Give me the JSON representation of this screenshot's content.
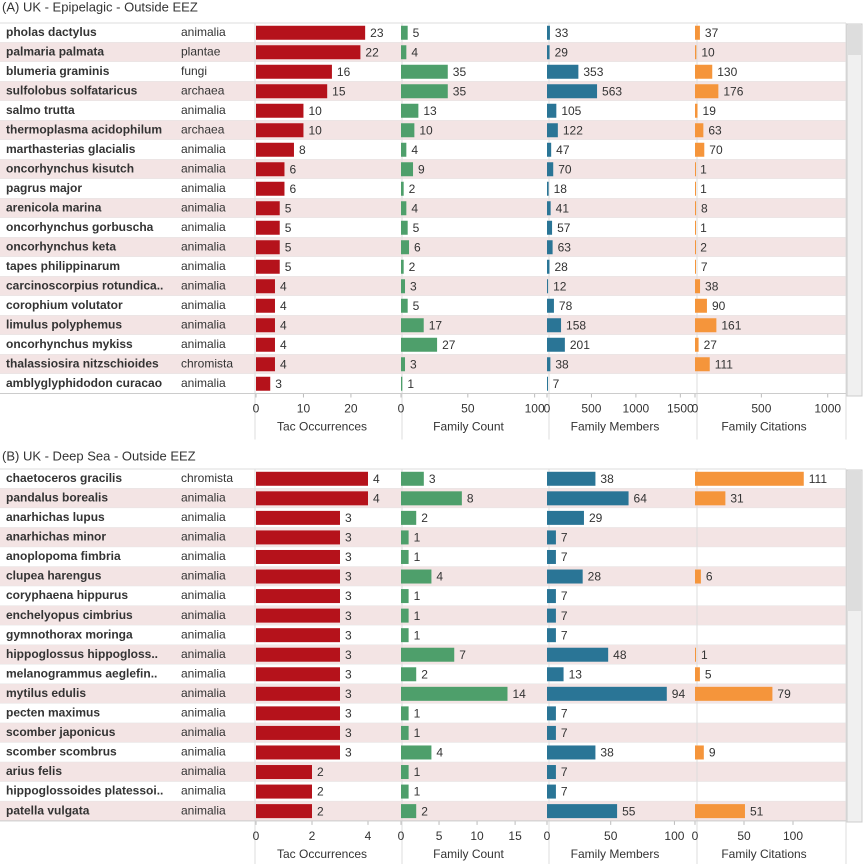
{
  "chart_data": [
    {
      "type": "hbar-table",
      "title": "(A) UK - Epipelagic - Outside EEZ",
      "categories": [
        "pholas dactylus",
        "palmaria palmata",
        "blumeria graminis",
        "sulfolobus solfataricus",
        "salmo trutta",
        "thermoplasma acidophilum",
        "marthasterias glacialis",
        "oncorhynchus kisutch",
        "pagrus major",
        "arenicola marina",
        "oncorhynchus gorbuscha",
        "oncorhynchus keta",
        "tapes philippinarum",
        "carcinoscorpius rotundica..",
        "corophium volutator",
        "limulus polyphemus",
        "oncorhynchus mykiss",
        "thalassiosira nitzschioides",
        "amblyglyphidodon curacao"
      ],
      "kingdoms": [
        "animalia",
        "plantae",
        "fungi",
        "archaea",
        "animalia",
        "archaea",
        "animalia",
        "animalia",
        "animalia",
        "animalia",
        "animalia",
        "animalia",
        "animalia",
        "animalia",
        "animalia",
        "animalia",
        "animalia",
        "chromista",
        "animalia"
      ],
      "series": [
        {
          "name": "Tac Occurrences",
          "color": "#b5121b",
          "values": [
            23,
            22,
            16,
            15,
            10,
            10,
            8,
            6,
            6,
            5,
            5,
            5,
            5,
            4,
            4,
            4,
            4,
            4,
            3
          ],
          "xlim": [
            0,
            29.5
          ],
          "xticks": [
            0,
            10,
            20
          ]
        },
        {
          "name": "Family Count",
          "color": "#4e9f6b",
          "values": [
            5,
            4,
            35,
            35,
            13,
            10,
            4,
            9,
            2,
            4,
            5,
            6,
            2,
            3,
            5,
            17,
            27,
            3,
            1
          ],
          "xlim": [
            0,
            107
          ],
          "xticks": [
            0,
            50,
            100
          ]
        },
        {
          "name": "Family Members",
          "color": "#2a7596",
          "values": [
            33,
            29,
            353,
            563,
            105,
            122,
            47,
            70,
            18,
            41,
            57,
            63,
            28,
            12,
            78,
            158,
            201,
            38,
            7
          ],
          "xlim": [
            0,
            1620
          ],
          "xticks": [
            0,
            500,
            1000,
            1500
          ]
        },
        {
          "name": "Family Citations",
          "color": "#f5953b",
          "values": [
            37,
            10,
            130,
            176,
            19,
            63,
            70,
            1,
            1,
            8,
            1,
            2,
            7,
            38,
            90,
            161,
            27,
            111,
            null
          ],
          "xlim": [
            0,
            1100
          ],
          "xticks": [
            0,
            500,
            1000
          ]
        }
      ]
    },
    {
      "type": "hbar-table",
      "title": "(B) UK - Deep Sea - Outside EEZ",
      "categories": [
        "chaetoceros gracilis",
        "pandalus borealis",
        "anarhichas lupus",
        "anarhichas minor",
        "anoplopoma fimbria",
        "clupea harengus",
        "coryphaena hippurus",
        "enchelyopus cimbrius",
        "gymnothorax moringa",
        "hippoglossus hippogloss..",
        "melanogrammus aeglefin..",
        "mytilus edulis",
        "pecten maximus",
        "scomber japonicus",
        "scomber scombrus",
        "arius felis",
        "hippoglossoides platessoi..",
        "patella vulgata"
      ],
      "kingdoms": [
        "chromista",
        "animalia",
        "animalia",
        "animalia",
        "animalia",
        "animalia",
        "animalia",
        "animalia",
        "animalia",
        "animalia",
        "animalia",
        "animalia",
        "animalia",
        "animalia",
        "animalia",
        "animalia",
        "animalia",
        "animalia"
      ],
      "series": [
        {
          "name": "Tac Occurrences",
          "color": "#b5121b",
          "values": [
            4,
            4,
            3,
            3,
            3,
            3,
            3,
            3,
            3,
            3,
            3,
            3,
            3,
            3,
            3,
            2,
            2,
            2
          ],
          "xlim": [
            0,
            5
          ],
          "xticks": [
            0,
            2,
            4
          ]
        },
        {
          "name": "Family Count",
          "color": "#4e9f6b",
          "values": [
            3,
            8,
            2,
            1,
            1,
            4,
            1,
            1,
            1,
            7,
            2,
            14,
            1,
            1,
            4,
            1,
            1,
            2
          ],
          "xlim": [
            0,
            18.8
          ],
          "xticks": [
            0,
            5,
            10,
            15
          ]
        },
        {
          "name": "Family Members",
          "color": "#2a7596",
          "values": [
            38,
            64,
            29,
            7,
            7,
            28,
            7,
            7,
            7,
            48,
            13,
            94,
            7,
            7,
            38,
            7,
            7,
            55
          ],
          "xlim": [
            0,
            113
          ],
          "xticks": [
            0,
            50,
            100
          ]
        },
        {
          "name": "Family Citations",
          "color": "#f5953b",
          "values": [
            111,
            31,
            null,
            null,
            null,
            6,
            null,
            null,
            null,
            1,
            5,
            79,
            null,
            null,
            9,
            null,
            null,
            51
          ],
          "xlim": [
            0,
            149
          ],
          "xticks": [
            0,
            50,
            100
          ]
        }
      ]
    }
  ]
}
